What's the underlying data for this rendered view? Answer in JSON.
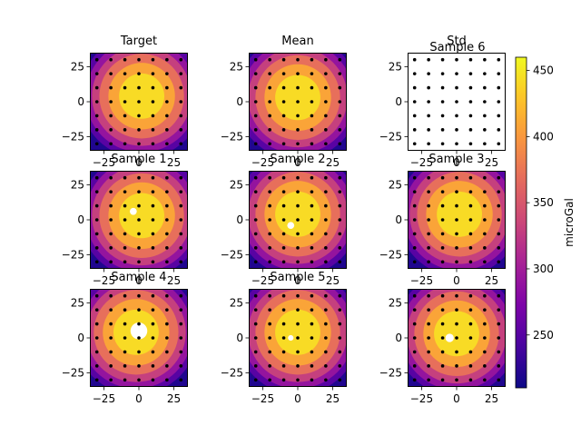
{
  "figure": {
    "colorbar": {
      "label": "microGal",
      "min": 210,
      "max": 460,
      "ticks": [
        250,
        300,
        350,
        400,
        450
      ],
      "colormap": "plasma"
    }
  },
  "chart_data": {
    "type": "heatmap",
    "xlim": [
      -35,
      35
    ],
    "ylim": [
      -35,
      35
    ],
    "xticks": [
      -25,
      0,
      25
    ],
    "yticks": [
      -25,
      0,
      25
    ],
    "station_grid": [
      -30,
      -20,
      -10,
      0,
      10,
      20,
      30
    ],
    "levels": [
      230,
      270,
      310,
      350,
      390,
      425,
      460
    ],
    "peak_value": 455,
    "panels": [
      {
        "title": "Target",
        "extra_title": "",
        "cx": 2,
        "cy": 4,
        "sx": 1.0,
        "sy": 1.0,
        "dots": "full",
        "holes": []
      },
      {
        "title": "Mean",
        "extra_title": "",
        "cx": 0,
        "cy": 3,
        "sx": 1.0,
        "sy": 1.0,
        "dots": "full",
        "holes": []
      },
      {
        "title": "Std",
        "extra_title": "Sample 6",
        "cx": 0,
        "cy": 0,
        "sx": 1.0,
        "sy": 1.0,
        "dots": "full",
        "blank": true,
        "holes": []
      },
      {
        "title": "Sample 1",
        "extra_title": "",
        "cx": 2,
        "cy": 3,
        "sx": 1.0,
        "sy": 1.0,
        "dots": "full",
        "holes": [
          [
            -4,
            6,
            2.5
          ]
        ]
      },
      {
        "title": "Sample 2",
        "extra_title": "",
        "cx": 0,
        "cy": 4,
        "sx": 1.0,
        "sy": 1.0,
        "dots": "full",
        "holes": [
          [
            -5,
            -4,
            2.5
          ]
        ]
      },
      {
        "title": "Sample 3",
        "extra_title": "",
        "cx": 2,
        "cy": 4,
        "sx": 1.0,
        "sy": 1.0,
        "dots": "full",
        "holes": []
      },
      {
        "title": "Sample 4",
        "extra_title": "",
        "cx": -2,
        "cy": 4,
        "sx": 1.0,
        "sy": 1.0,
        "dots": "inner",
        "holes": [
          [
            0,
            5,
            6
          ]
        ]
      },
      {
        "title": "Sample 5",
        "extra_title": "",
        "cx": 0,
        "cy": 4,
        "sx": 1.0,
        "sy": 1.0,
        "dots": "inner",
        "holes": [
          [
            -5,
            0,
            2
          ]
        ]
      },
      {
        "title": "",
        "extra_title": "",
        "cx": 0,
        "cy": 3,
        "sx": 1.0,
        "sy": 1.0,
        "dots": "inner",
        "holes": [
          [
            -5,
            0,
            3
          ]
        ]
      }
    ]
  }
}
